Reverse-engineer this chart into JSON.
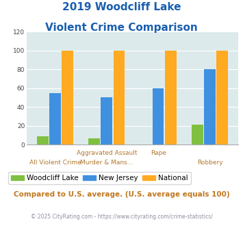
{
  "title_line1": "2019 Woodcliff Lake",
  "title_line2": "Violent Crime Comparison",
  "woodcliff": [
    9,
    7,
    0,
    21
  ],
  "new_jersey": [
    55,
    50,
    60,
    80
  ],
  "national": [
    100,
    100,
    100,
    100
  ],
  "colors": {
    "woodcliff": "#80c040",
    "new_jersey": "#4090e0",
    "national": "#ffaa20",
    "background": "#ddeaec",
    "title": "#1a5fb0",
    "label": "#b07830",
    "footer": "#9090a0",
    "subtitle": "#c07820"
  },
  "ylim": [
    0,
    120
  ],
  "yticks": [
    0,
    20,
    40,
    60,
    80,
    100,
    120
  ],
  "subtitle_text": "Compared to U.S. average. (U.S. average equals 100)",
  "footer_text": "© 2025 CityRating.com - https://www.cityrating.com/crime-statistics/",
  "legend_labels": [
    "Woodcliff Lake",
    "New Jersey",
    "National"
  ]
}
